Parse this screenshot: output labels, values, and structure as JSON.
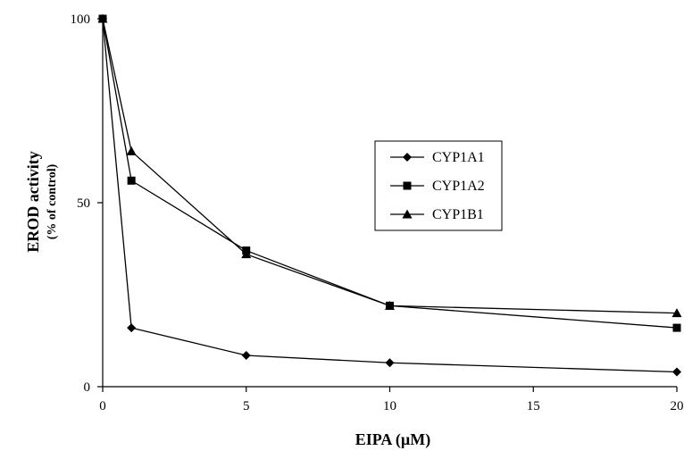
{
  "chart_data": {
    "type": "line",
    "title": "",
    "xlabel": "EIPA (µM)",
    "ylabel": "EROD activity",
    "ylabel_sub": "(% of control)",
    "xlim": [
      0,
      20
    ],
    "ylim": [
      0,
      100
    ],
    "xticks": [
      0,
      5,
      10,
      15,
      20
    ],
    "yticks": [
      0,
      50,
      100
    ],
    "grid": false,
    "legend_position": "center-right",
    "series": [
      {
        "name": "CYP1A1",
        "marker": "diamond",
        "x": [
          0,
          1,
          5,
          10,
          20
        ],
        "y": [
          100,
          16,
          8.5,
          6.5,
          4
        ]
      },
      {
        "name": "CYP1A2",
        "marker": "square",
        "x": [
          0,
          1,
          5,
          10,
          20
        ],
        "y": [
          100,
          56,
          37,
          22,
          16
        ]
      },
      {
        "name": "CYP1B1",
        "marker": "triangle",
        "x": [
          0,
          1,
          5,
          10,
          20
        ],
        "y": [
          100,
          64,
          36,
          22,
          20
        ]
      }
    ]
  },
  "colors": {
    "line": "#000000",
    "marker": "#000000"
  }
}
